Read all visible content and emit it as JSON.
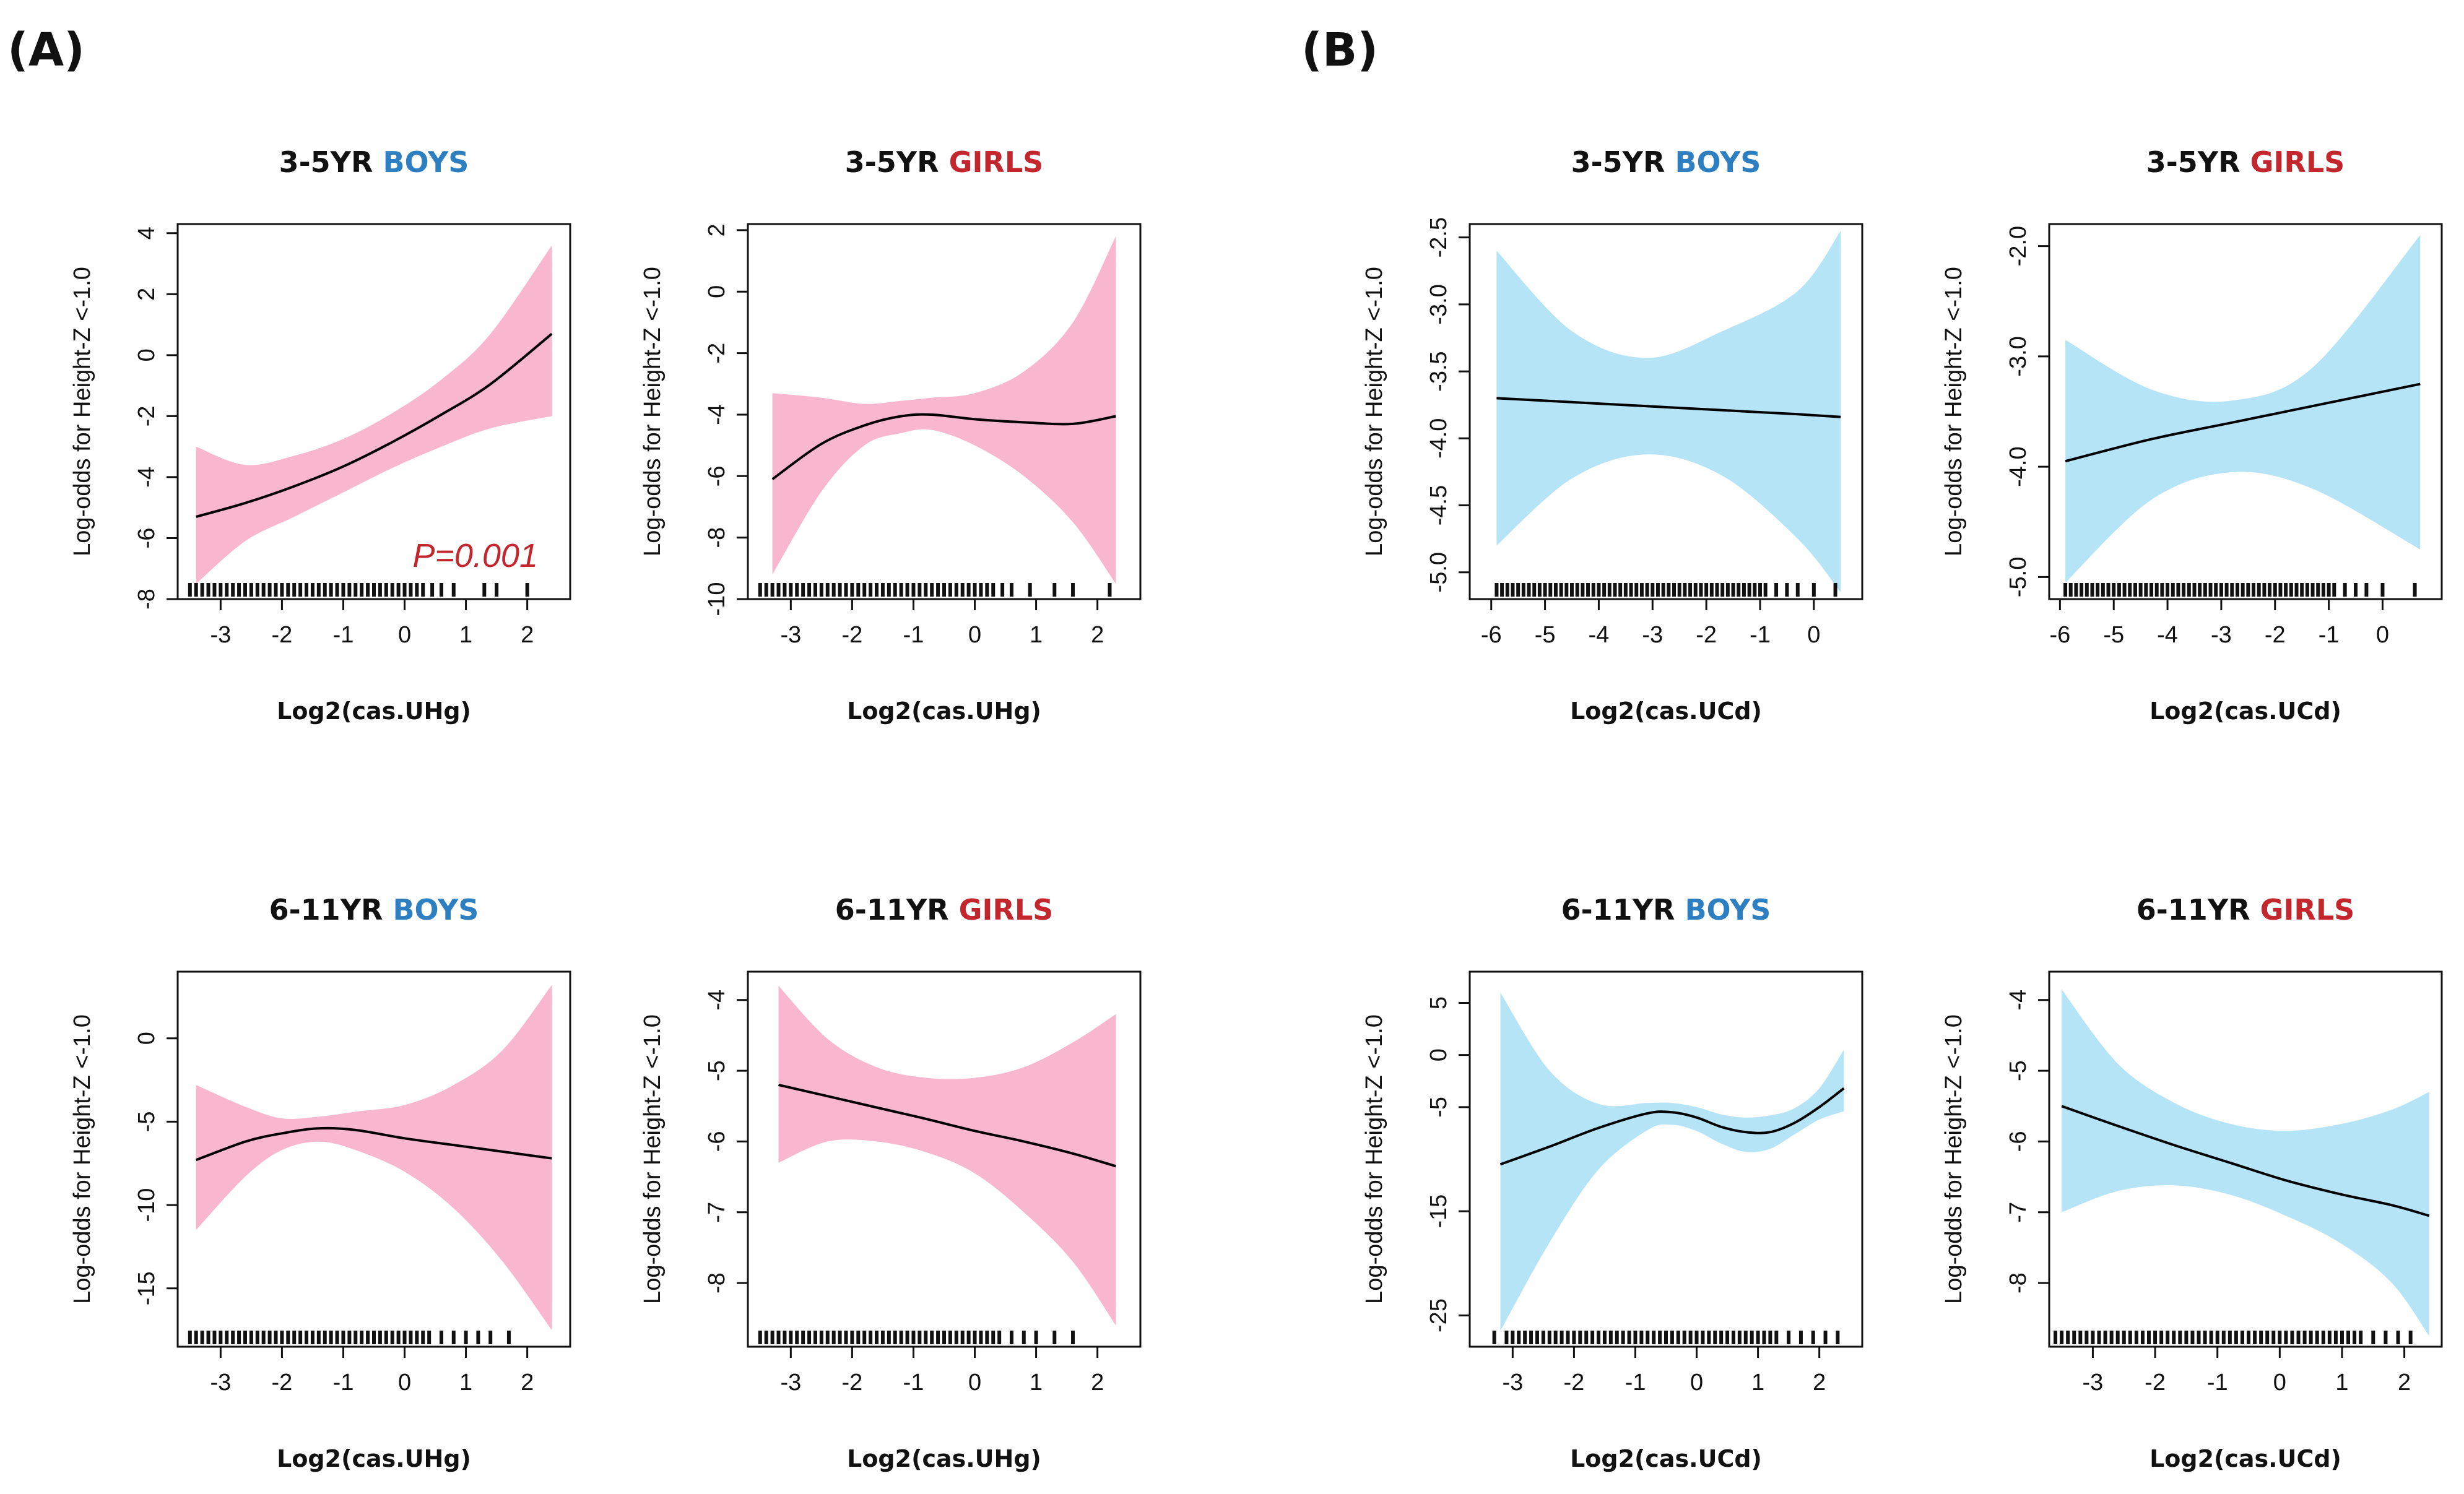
{
  "panel_labels": [
    "(A)",
    "(B)"
  ],
  "colors": {
    "boys": "#2e7fc1",
    "girls": "#c4262e",
    "pink_band": "#f8b6cf",
    "blue_band": "#b5e4f6",
    "line": "#000000"
  },
  "chart_data": [
    {
      "type": "line",
      "group": "A",
      "age": "3-5YR",
      "sex": "BOYS",
      "band": "pink",
      "xlabel": "Log2(cas.UHg)",
      "ylabel": "Log-odds for Height-Z <-1.0",
      "xlim": [
        -3.7,
        2.7
      ],
      "ylim": [
        -8,
        4.3
      ],
      "xticks": [
        -3,
        -2,
        -1,
        0,
        1,
        2
      ],
      "yticks": [
        -8,
        -6,
        -4,
        -2,
        0,
        2,
        4
      ],
      "annotation": "P=0.001",
      "x": [
        -3.4,
        -2.6,
        -1.8,
        -1.0,
        -0.2,
        0.6,
        1.4,
        2.4
      ],
      "fit": [
        -5.3,
        -4.85,
        -4.3,
        -3.65,
        -2.85,
        -1.95,
        -0.95,
        0.7
      ],
      "lower": [
        -7.5,
        -6.1,
        -5.3,
        -4.5,
        -3.7,
        -3.0,
        -2.4,
        -2.0
      ],
      "upper": [
        -3.0,
        -3.6,
        -3.3,
        -2.75,
        -1.9,
        -0.8,
        0.7,
        3.6
      ],
      "rug_x": [
        -3.5,
        -3.4,
        -3.3,
        -3.2,
        -3.1,
        -3.0,
        -2.9,
        -2.8,
        -2.7,
        -2.6,
        -2.5,
        -2.4,
        -2.3,
        -2.2,
        -2.1,
        -2.0,
        -1.9,
        -1.8,
        -1.7,
        -1.6,
        -1.5,
        -1.4,
        -1.3,
        -1.2,
        -1.1,
        -1.0,
        -0.9,
        -0.8,
        -0.7,
        -0.6,
        -0.5,
        -0.4,
        -0.3,
        -0.2,
        -0.1,
        0.0,
        0.1,
        0.2,
        0.3,
        0.45,
        0.6,
        0.8,
        1.3,
        1.5,
        2.0
      ]
    },
    {
      "type": "line",
      "group": "A",
      "age": "3-5YR",
      "sex": "GIRLS",
      "band": "pink",
      "xlabel": "Log2(cas.UHg)",
      "ylabel": "Log-odds for Height-Z <-1.0",
      "xlim": [
        -3.7,
        2.7
      ],
      "ylim": [
        -10,
        2.2
      ],
      "xticks": [
        -3,
        -2,
        -1,
        0,
        1,
        2
      ],
      "yticks": [
        -10,
        -8,
        -6,
        -4,
        -2,
        0,
        2
      ],
      "x": [
        -3.3,
        -2.5,
        -1.8,
        -1.2,
        -0.7,
        0.0,
        0.8,
        1.6,
        2.3
      ],
      "fit": [
        -6.1,
        -4.95,
        -4.35,
        -4.05,
        -4.0,
        -4.15,
        -4.25,
        -4.3,
        -4.05
      ],
      "lower": [
        -9.2,
        -6.5,
        -5.0,
        -4.6,
        -4.5,
        -5.0,
        -6.0,
        -7.5,
        -9.5
      ],
      "upper": [
        -3.3,
        -3.45,
        -3.65,
        -3.55,
        -3.45,
        -3.3,
        -2.6,
        -1.0,
        1.8
      ],
      "rug_x": [
        -3.5,
        -3.4,
        -3.3,
        -3.2,
        -3.1,
        -3.0,
        -2.9,
        -2.8,
        -2.7,
        -2.6,
        -2.5,
        -2.4,
        -2.3,
        -2.2,
        -2.1,
        -2.0,
        -1.9,
        -1.8,
        -1.7,
        -1.6,
        -1.5,
        -1.4,
        -1.3,
        -1.2,
        -1.1,
        -1.0,
        -0.9,
        -0.8,
        -0.7,
        -0.6,
        -0.5,
        -0.4,
        -0.3,
        -0.2,
        -0.1,
        0.0,
        0.1,
        0.2,
        0.3,
        0.45,
        0.6,
        0.9,
        1.3,
        1.6,
        2.2
      ]
    },
    {
      "type": "line",
      "group": "B",
      "age": "3-5YR",
      "sex": "BOYS",
      "band": "blue",
      "xlabel": "Log2(cas.UCd)",
      "ylabel": "Log-odds for Height-Z <-1.0",
      "xlim": [
        -6.4,
        0.9
      ],
      "ylim": [
        -5.2,
        -2.4
      ],
      "xticks": [
        -6,
        -5,
        -4,
        -3,
        -2,
        -1,
        0
      ],
      "yticks": [
        -5.0,
        -4.5,
        -4.0,
        -3.5,
        -3.0,
        -2.5
      ],
      "ytick_labels": [
        "-5.0",
        "-4.5",
        "-4.0",
        "-3.5",
        "-3.0",
        "-2.5"
      ],
      "x": [
        -5.9,
        -4.5,
        -3.1,
        -1.7,
        -0.3,
        0.5
      ],
      "fit": [
        -3.7,
        -3.73,
        -3.76,
        -3.79,
        -3.82,
        -3.84
      ],
      "lower": [
        -4.8,
        -4.3,
        -4.12,
        -4.28,
        -4.75,
        -5.15
      ],
      "upper": [
        -2.6,
        -3.2,
        -3.4,
        -3.2,
        -2.9,
        -2.45
      ],
      "rug_x": [
        -5.9,
        -5.8,
        -5.7,
        -5.6,
        -5.5,
        -5.4,
        -5.3,
        -5.2,
        -5.1,
        -5.0,
        -4.9,
        -4.8,
        -4.7,
        -4.6,
        -4.5,
        -4.4,
        -4.3,
        -4.2,
        -4.1,
        -4.0,
        -3.9,
        -3.8,
        -3.7,
        -3.6,
        -3.5,
        -3.4,
        -3.3,
        -3.2,
        -3.1,
        -3.0,
        -2.9,
        -2.8,
        -2.7,
        -2.6,
        -2.5,
        -2.4,
        -2.3,
        -2.2,
        -2.1,
        -2.0,
        -1.9,
        -1.8,
        -1.7,
        -1.6,
        -1.5,
        -1.4,
        -1.3,
        -1.2,
        -1.1,
        -1.0,
        -0.9,
        -0.7,
        -0.5,
        -0.3,
        0.0,
        0.4
      ]
    },
    {
      "type": "line",
      "group": "B",
      "age": "3-5YR",
      "sex": "GIRLS",
      "band": "blue",
      "xlabel": "Log2(cas.UCd)",
      "ylabel": "Log-odds for Height-Z <-1.0",
      "xlim": [
        -6.2,
        1.1
      ],
      "ylim": [
        -5.2,
        -1.8
      ],
      "xticks": [
        -6,
        -5,
        -4,
        -3,
        -2,
        -1,
        0
      ],
      "yticks": [
        -5.0,
        -4.0,
        -3.0,
        -2.0
      ],
      "ytick_labels": [
        "-5.0",
        "-4.0",
        "-3.0",
        "-2.0"
      ],
      "x": [
        -5.9,
        -4.3,
        -2.8,
        -1.3,
        0.7
      ],
      "fit": [
        -3.95,
        -3.75,
        -3.6,
        -3.45,
        -3.25
      ],
      "lower": [
        -5.05,
        -4.3,
        -4.05,
        -4.2,
        -4.75
      ],
      "upper": [
        -2.85,
        -3.3,
        -3.4,
        -3.1,
        -1.9
      ],
      "rug_x": [
        -5.9,
        -5.8,
        -5.7,
        -5.6,
        -5.5,
        -5.4,
        -5.3,
        -5.2,
        -5.1,
        -5.0,
        -4.9,
        -4.8,
        -4.7,
        -4.6,
        -4.5,
        -4.4,
        -4.3,
        -4.2,
        -4.1,
        -4.0,
        -3.9,
        -3.8,
        -3.7,
        -3.6,
        -3.5,
        -3.4,
        -3.3,
        -3.2,
        -3.1,
        -3.0,
        -2.9,
        -2.8,
        -2.7,
        -2.6,
        -2.5,
        -2.4,
        -2.3,
        -2.2,
        -2.1,
        -2.0,
        -1.9,
        -1.8,
        -1.7,
        -1.6,
        -1.5,
        -1.4,
        -1.3,
        -1.2,
        -1.1,
        -1.0,
        -0.9,
        -0.7,
        -0.5,
        -0.3,
        0.0,
        0.6
      ]
    },
    {
      "type": "line",
      "group": "A",
      "age": "6-11YR",
      "sex": "BOYS",
      "band": "pink",
      "xlabel": "Log2(cas.UHg)",
      "ylabel": "Log-odds for Height-Z <-1.0",
      "xlim": [
        -3.7,
        2.7
      ],
      "ylim": [
        -18.5,
        4
      ],
      "xticks": [
        -3,
        -2,
        -1,
        0,
        1,
        2
      ],
      "yticks": [
        -15,
        -10,
        -5,
        0
      ],
      "x": [
        -3.4,
        -2.6,
        -2.0,
        -1.4,
        -0.8,
        0.0,
        0.8,
        1.6,
        2.4
      ],
      "fit": [
        -7.3,
        -6.2,
        -5.7,
        -5.4,
        -5.5,
        -6.0,
        -6.4,
        -6.8,
        -7.2
      ],
      "lower": [
        -11.5,
        -8.3,
        -6.7,
        -6.2,
        -6.7,
        -8.0,
        -10.2,
        -13.4,
        -17.5
      ],
      "upper": [
        -2.8,
        -4.1,
        -4.8,
        -4.7,
        -4.4,
        -4.0,
        -2.8,
        -0.7,
        3.2
      ],
      "rug_x": [
        -3.5,
        -3.4,
        -3.3,
        -3.2,
        -3.1,
        -3.0,
        -2.9,
        -2.8,
        -2.7,
        -2.6,
        -2.5,
        -2.4,
        -2.3,
        -2.2,
        -2.1,
        -2.0,
        -1.9,
        -1.8,
        -1.7,
        -1.6,
        -1.5,
        -1.4,
        -1.3,
        -1.2,
        -1.1,
        -1.0,
        -0.9,
        -0.8,
        -0.7,
        -0.6,
        -0.5,
        -0.4,
        -0.3,
        -0.2,
        -0.1,
        0.0,
        0.1,
        0.2,
        0.3,
        0.4,
        0.6,
        0.8,
        1.0,
        1.2,
        1.4,
        1.7
      ]
    },
    {
      "type": "line",
      "group": "A",
      "age": "6-11YR",
      "sex": "GIRLS",
      "band": "pink",
      "xlabel": "Log2(cas.UHg)",
      "ylabel": "Log-odds for Height-Z <-1.0",
      "xlim": [
        -3.7,
        2.7
      ],
      "ylim": [
        -8.9,
        -3.6
      ],
      "xticks": [
        -3,
        -2,
        -1,
        0,
        1,
        2
      ],
      "yticks": [
        -8,
        -7,
        -6,
        -5,
        -4
      ],
      "x": [
        -3.2,
        -2.4,
        -1.6,
        -0.8,
        0.0,
        0.8,
        1.6,
        2.3
      ],
      "fit": [
        -5.2,
        -5.36,
        -5.52,
        -5.68,
        -5.85,
        -6.0,
        -6.17,
        -6.35
      ],
      "lower": [
        -6.3,
        -6.0,
        -6.0,
        -6.15,
        -6.45,
        -7.0,
        -7.7,
        -8.6
      ],
      "upper": [
        -3.8,
        -4.55,
        -4.95,
        -5.1,
        -5.1,
        -4.95,
        -4.6,
        -4.2
      ],
      "rug_x": [
        -3.5,
        -3.4,
        -3.3,
        -3.2,
        -3.1,
        -3.0,
        -2.9,
        -2.8,
        -2.7,
        -2.6,
        -2.5,
        -2.4,
        -2.3,
        -2.2,
        -2.1,
        -2.0,
        -1.9,
        -1.8,
        -1.7,
        -1.6,
        -1.5,
        -1.4,
        -1.3,
        -1.2,
        -1.1,
        -1.0,
        -0.9,
        -0.8,
        -0.7,
        -0.6,
        -0.5,
        -0.4,
        -0.3,
        -0.2,
        -0.1,
        0.0,
        0.1,
        0.2,
        0.3,
        0.4,
        0.6,
        0.8,
        1.0,
        1.3,
        1.6
      ]
    },
    {
      "type": "line",
      "group": "B",
      "age": "6-11YR",
      "sex": "BOYS",
      "band": "blue",
      "xlabel": "Log2(cas.UCd)",
      "ylabel": "Log-odds for Height-Z <-1.0",
      "xlim": [
        -3.7,
        2.7
      ],
      "ylim": [
        -28,
        8
      ],
      "xticks": [
        -3,
        -2,
        -1,
        0,
        1,
        2
      ],
      "yticks": [
        -25,
        -15,
        -5,
        0,
        5
      ],
      "x": [
        -3.2,
        -2.4,
        -1.6,
        -0.8,
        -0.4,
        0.0,
        0.4,
        0.8,
        1.2,
        1.6,
        2.0,
        2.4
      ],
      "fit": [
        -10.5,
        -8.8,
        -7.0,
        -5.6,
        -5.5,
        -6.0,
        -6.9,
        -7.4,
        -7.4,
        -6.5,
        -5.0,
        -3.2
      ],
      "lower": [
        -26.5,
        -18.0,
        -11.0,
        -7.2,
        -6.7,
        -7.3,
        -8.5,
        -9.3,
        -9.0,
        -7.6,
        -6.2,
        -5.4
      ],
      "upper": [
        6.0,
        -1.5,
        -4.7,
        -4.6,
        -4.6,
        -5.0,
        -5.7,
        -6.0,
        -5.8,
        -5.1,
        -3.2,
        0.5
      ],
      "rug_x": [
        -3.3,
        -3.1,
        -3.0,
        -2.9,
        -2.8,
        -2.7,
        -2.6,
        -2.5,
        -2.4,
        -2.3,
        -2.2,
        -2.1,
        -2.0,
        -1.9,
        -1.8,
        -1.7,
        -1.6,
        -1.5,
        -1.4,
        -1.3,
        -1.2,
        -1.1,
        -1.0,
        -0.9,
        -0.8,
        -0.7,
        -0.6,
        -0.5,
        -0.4,
        -0.3,
        -0.2,
        -0.1,
        0.0,
        0.1,
        0.2,
        0.3,
        0.4,
        0.5,
        0.6,
        0.7,
        0.8,
        0.9,
        1.0,
        1.1,
        1.2,
        1.3,
        1.5,
        1.7,
        1.9,
        2.1,
        2.3
      ]
    },
    {
      "type": "line",
      "group": "B",
      "age": "6-11YR",
      "sex": "GIRLS",
      "band": "blue",
      "xlabel": "Log2(cas.UCd)",
      "ylabel": "Log-odds for Height-Z <-1.0",
      "xlim": [
        -3.7,
        2.6
      ],
      "ylim": [
        -8.9,
        -3.6
      ],
      "xticks": [
        -3,
        -2,
        -1,
        0,
        1,
        2
      ],
      "yticks": [
        -8,
        -7,
        -6,
        -5,
        -4
      ],
      "x": [
        -3.5,
        -2.6,
        -1.7,
        -0.8,
        0.1,
        1.0,
        1.8,
        2.4
      ],
      "fit": [
        -5.5,
        -5.78,
        -6.05,
        -6.3,
        -6.55,
        -6.75,
        -6.9,
        -7.05
      ],
      "lower": [
        -7.0,
        -6.7,
        -6.62,
        -6.75,
        -7.05,
        -7.45,
        -8.0,
        -8.75
      ],
      "upper": [
        -3.85,
        -4.9,
        -5.45,
        -5.75,
        -5.85,
        -5.75,
        -5.55,
        -5.3
      ],
      "rug_x": [
        -3.6,
        -3.5,
        -3.4,
        -3.3,
        -3.2,
        -3.1,
        -3.0,
        -2.9,
        -2.8,
        -2.7,
        -2.6,
        -2.5,
        -2.4,
        -2.3,
        -2.2,
        -2.1,
        -2.0,
        -1.9,
        -1.8,
        -1.7,
        -1.6,
        -1.5,
        -1.4,
        -1.3,
        -1.2,
        -1.1,
        -1.0,
        -0.9,
        -0.8,
        -0.7,
        -0.6,
        -0.5,
        -0.4,
        -0.3,
        -0.2,
        -0.1,
        0.0,
        0.1,
        0.2,
        0.3,
        0.4,
        0.5,
        0.6,
        0.7,
        0.8,
        0.9,
        1.0,
        1.1,
        1.2,
        1.3,
        1.5,
        1.7,
        1.9,
        2.1
      ]
    }
  ]
}
